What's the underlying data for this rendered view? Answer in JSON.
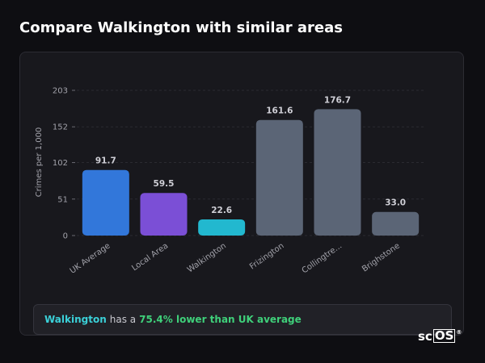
{
  "header": {
    "title": "Compare Walkington with similar areas"
  },
  "chart_data": {
    "type": "bar",
    "ylabel": "Crimes per 1,000",
    "xlabel": "",
    "ylim": [
      0,
      203
    ],
    "yticks": [
      0,
      51,
      102,
      152,
      203
    ],
    "grid": true,
    "categories": [
      "UK Average",
      "Local Area",
      "Walkington",
      "Frizington",
      "Collingtre...",
      "Brighstone"
    ],
    "values": [
      91.7,
      59.5,
      22.6,
      161.6,
      176.7,
      33.0
    ],
    "value_labels": [
      "91.7",
      "59.5",
      "22.6",
      "161.6",
      "176.7",
      "33.0"
    ],
    "colors": [
      "#3277da",
      "#7b4fd6",
      "#22b8cf",
      "#5b6576",
      "#5b6576",
      "#5b6576"
    ]
  },
  "summary": {
    "area": "Walkington",
    "mid": "has a",
    "stat": "75.4% lower than UK average"
  },
  "brand": {
    "left": "sc",
    "boxed": "OS",
    "mark": "®"
  }
}
